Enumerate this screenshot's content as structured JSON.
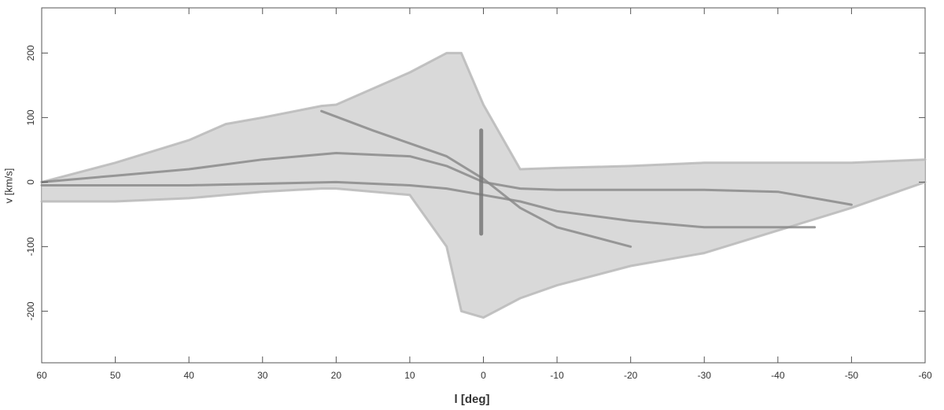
{
  "chart_data": {
    "type": "line",
    "xlabel": "l [deg]",
    "ylabel": "v [km/s]",
    "xlim": [
      60,
      -60
    ],
    "ylim": [
      -280,
      270
    ],
    "xticks": [
      60,
      50,
      40,
      30,
      20,
      10,
      0,
      -10,
      -20,
      -30,
      -40,
      -50,
      -60
    ],
    "yticks": [
      200,
      100,
      0,
      -100,
      -200
    ],
    "fill_between": [
      0,
      1
    ],
    "fill_color": "#cfcfcf",
    "series": [
      {
        "color": "#b8b8b8",
        "x": [
          60,
          50,
          40,
          35,
          30,
          22,
          20,
          10,
          5,
          3,
          0,
          -5,
          -10,
          -20,
          -30,
          -40,
          -50,
          -60
        ],
        "values": [
          0,
          30,
          65,
          90,
          100,
          118,
          120,
          170,
          200,
          200,
          120,
          20,
          22,
          25,
          30,
          30,
          30,
          35
        ]
      },
      {
        "color": "#b8b8b8",
        "x": [
          60,
          50,
          40,
          35,
          30,
          22,
          20,
          10,
          5,
          3,
          0,
          -5,
          -10,
          -20,
          -30,
          -40,
          -50,
          -60
        ],
        "values": [
          -30,
          -30,
          -25,
          -20,
          -15,
          -10,
          -10,
          -20,
          -100,
          -200,
          -210,
          -180,
          -160,
          -130,
          -110,
          -75,
          -40,
          0
        ]
      },
      {
        "color": "#8a8a8a",
        "x": [
          60,
          50,
          40,
          30,
          20,
          10,
          5,
          0,
          -5,
          -10,
          -20,
          -30,
          -40,
          -50
        ],
        "values": [
          0,
          10,
          20,
          35,
          45,
          40,
          25,
          0,
          -10,
          -12,
          -12,
          -12,
          -15,
          -35
        ]
      },
      {
        "color": "#8a8a8a",
        "x": [
          22,
          15,
          10,
          5,
          0,
          -5,
          -10,
          -20
        ],
        "values": [
          110,
          80,
          60,
          40,
          5,
          -40,
          -70,
          -100
        ]
      },
      {
        "color": "#8a8a8a",
        "x": [
          60,
          40,
          20,
          10,
          5,
          0,
          -5,
          -10,
          -20,
          -30,
          -45
        ],
        "values": [
          -5,
          -5,
          0,
          -5,
          -10,
          -20,
          -30,
          -45,
          -60,
          -70,
          -70
        ]
      },
      {
        "color": "#777777",
        "x": [
          0.3,
          0.3
        ],
        "values": [
          80,
          -80
        ]
      }
    ]
  }
}
